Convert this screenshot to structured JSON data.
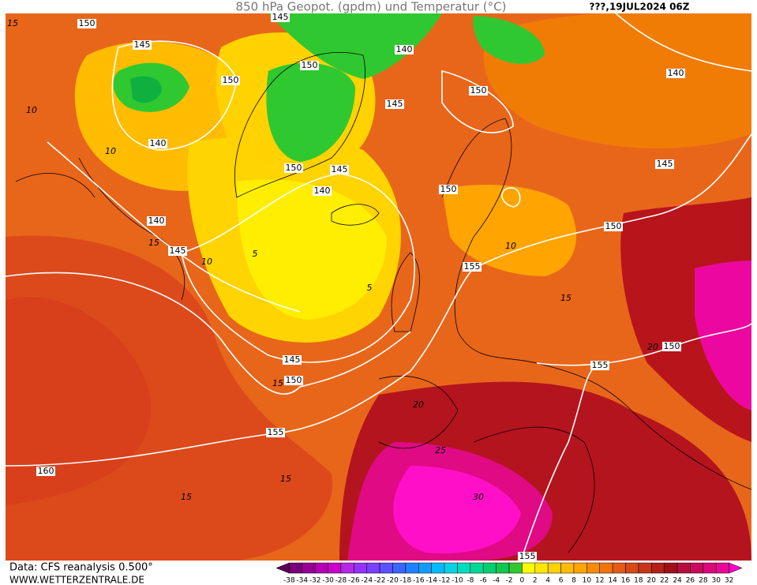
{
  "header": {
    "title": "850 hPa Geopot. (gpdm) und Temperatur (°C)",
    "run": "???,19JUL2024 06Z"
  },
  "footer": {
    "source": "Data: CFS reanalysis 0.500°",
    "website": "WWW.WETTERZENTRALE.DE"
  },
  "legend": {
    "labels": [
      -38,
      -34,
      -32,
      -30,
      -28,
      -26,
      -24,
      -22,
      -20,
      -18,
      -16,
      -14,
      -12,
      -10,
      -8,
      -6,
      -4,
      -2,
      0,
      2,
      4,
      6,
      8,
      10,
      12,
      14,
      16,
      18,
      20,
      22,
      24,
      26,
      28,
      30,
      32
    ],
    "colors": [
      "#5a0058",
      "#780078",
      "#960096",
      "#b400b4",
      "#cc00cc",
      "#b428e6",
      "#9632ff",
      "#7840ff",
      "#5a50ff",
      "#3c64ff",
      "#2080ff",
      "#109cff",
      "#00bcff",
      "#00d4e6",
      "#00dcbe",
      "#00d896",
      "#00d070",
      "#10c850",
      "#30c830",
      "#ffff00",
      "#ffe800",
      "#ffd200",
      "#ffbc00",
      "#ffa400",
      "#f88c00",
      "#f07408",
      "#e65c14",
      "#d84818",
      "#c83418",
      "#b42014",
      "#a01018",
      "#b80c40",
      "#cc0a5c",
      "#dc0878",
      "#ec0698",
      "#ff00c8"
    ]
  },
  "geopotential_labels": [
    150,
    145,
    150,
    140,
    140,
    145,
    150,
    140,
    145,
    150,
    145,
    140,
    150,
    140,
    145,
    150,
    150,
    155,
    145,
    150,
    155,
    160,
    155,
    150,
    155,
    145
  ],
  "temperature_labels": [
    15,
    10,
    10,
    15,
    10,
    5,
    5,
    15,
    15,
    15,
    30,
    20,
    10,
    15,
    20,
    25
  ]
}
